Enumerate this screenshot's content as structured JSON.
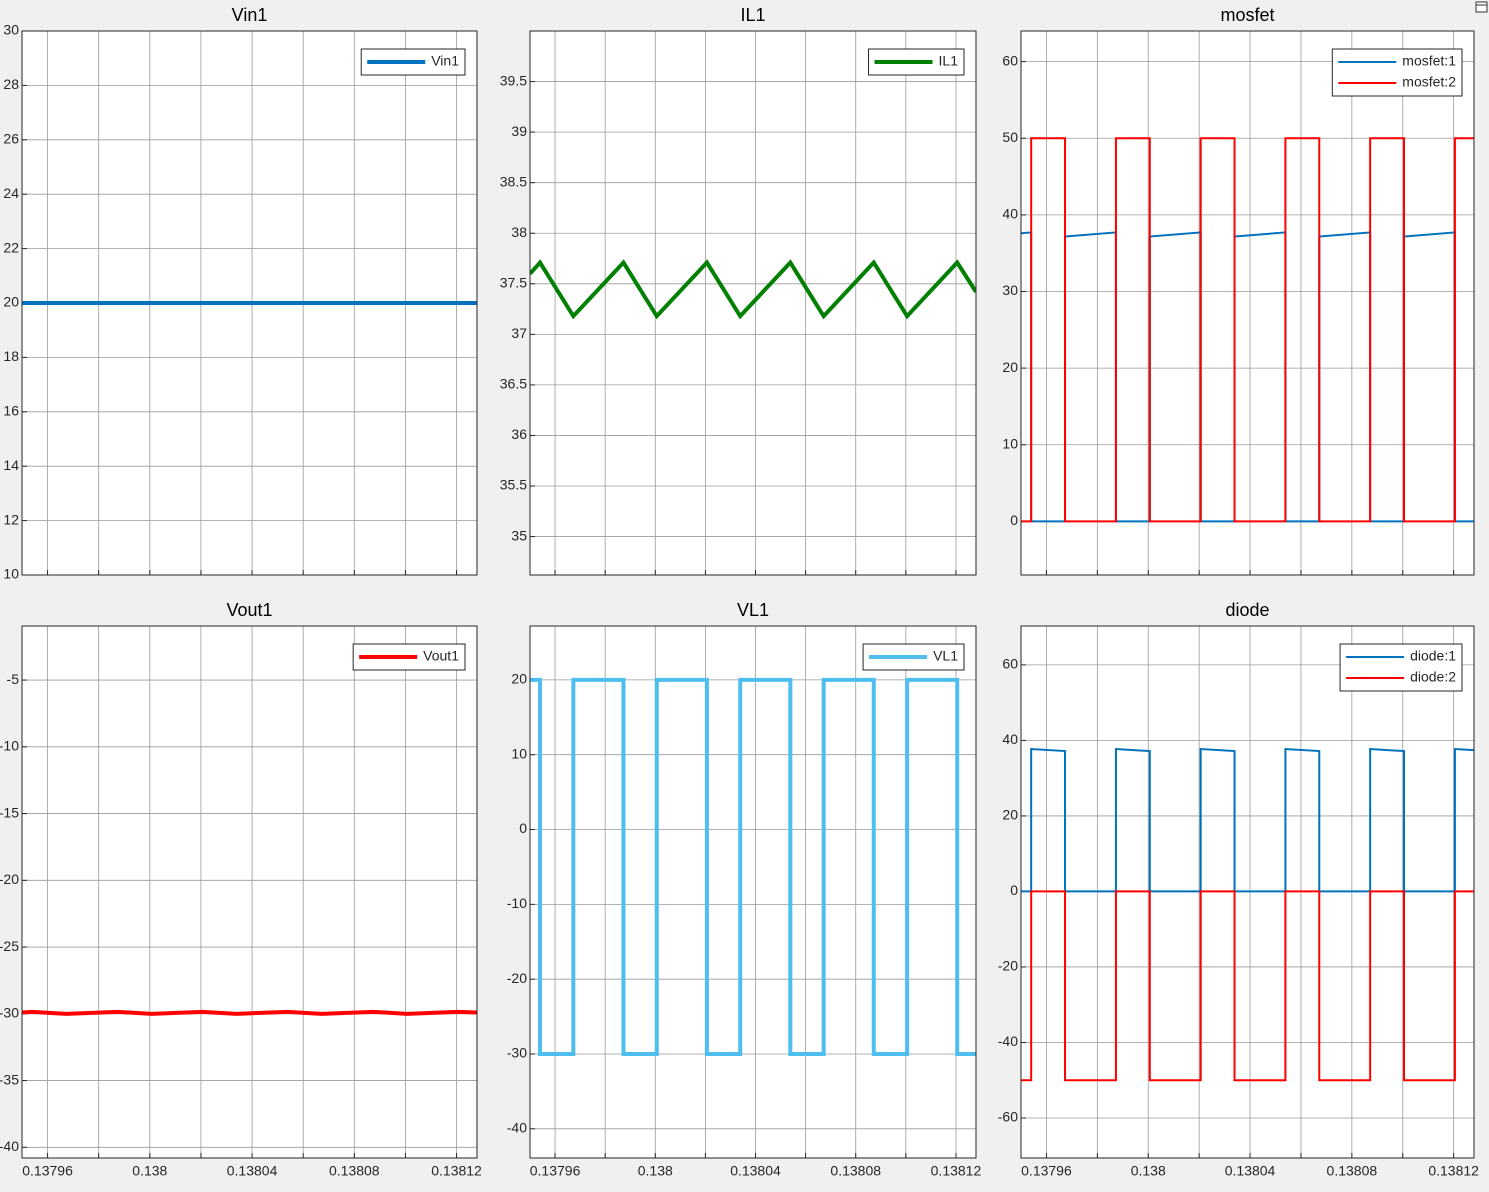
{
  "chart_data": [
    {
      "type": "line",
      "title": "Vin1",
      "xlim": [
        0.13795,
        0.138128
      ],
      "xgrid": [
        0.13796,
        0.13798,
        0.138,
        0.13802,
        0.13804,
        0.13806,
        0.13808,
        0.1381,
        0.13812
      ],
      "ylim": [
        10,
        30
      ],
      "yticks": [
        10,
        12,
        14,
        16,
        18,
        20,
        22,
        24,
        26,
        28,
        30
      ],
      "grid": true,
      "legend": "upper right",
      "line_width": 4,
      "series": [
        {
          "name": "Vin1",
          "color": "#0072bd",
          "x": [
            0.13795,
            0.138128
          ],
          "values": [
            20,
            20
          ]
        }
      ]
    },
    {
      "type": "line",
      "title": "IL1",
      "xlim": [
        0.13795,
        0.138128
      ],
      "xgrid": [
        0.13796,
        0.13798,
        0.138,
        0.13802,
        0.13804,
        0.13806,
        0.13808,
        0.1381,
        0.13812
      ],
      "ylim": [
        34.62,
        40
      ],
      "yticks": [
        35,
        35.5,
        36,
        36.5,
        37,
        37.5,
        38,
        38.5,
        39,
        39.5
      ],
      "grid": true,
      "legend": "upper right",
      "line_width": 4,
      "series": [
        {
          "name": "IL1",
          "color": "#008000",
          "x": [
            0.13795,
            0.137954,
            0.1379673,
            0.1379873,
            0.1380006,
            0.1380206,
            0.1380339,
            0.1380539,
            0.1380672,
            0.1380872,
            0.1381005,
            0.1381205,
            0.138128
          ],
          "values": [
            37.6,
            37.71,
            37.18,
            37.71,
            37.18,
            37.71,
            37.18,
            37.71,
            37.18,
            37.71,
            37.18,
            37.71,
            37.42
          ]
        }
      ]
    },
    {
      "type": "line",
      "title": "mosfet",
      "xlim": [
        0.13795,
        0.138128
      ],
      "xgrid": [
        0.13796,
        0.13798,
        0.138,
        0.13802,
        0.13804,
        0.13806,
        0.13808,
        0.1381,
        0.13812
      ],
      "ylim": [
        -7,
        64
      ],
      "yticks": [
        0,
        10,
        20,
        30,
        40,
        50,
        60
      ],
      "grid": true,
      "legend": "upper right",
      "line_width": 2,
      "series": [
        {
          "name": "mosfet:1",
          "color": "#0072bd",
          "x": [
            0.13795,
            0.137954,
            0.137954,
            0.1379673,
            0.1379673,
            0.1379873,
            0.1379873,
            0.1380006,
            0.1380006,
            0.1380206,
            0.1380206,
            0.1380339,
            0.1380339,
            0.1380539,
            0.1380539,
            0.1380672,
            0.1380672,
            0.1380872,
            0.1380872,
            0.1381005,
            0.1381005,
            0.1381205,
            0.1381205,
            0.138128
          ],
          "values": [
            37.6,
            37.71,
            0,
            0,
            37.18,
            37.71,
            0,
            0,
            37.18,
            37.71,
            0,
            0,
            37.18,
            37.71,
            0,
            0,
            37.18,
            37.71,
            0,
            0,
            37.18,
            37.71,
            0,
            0
          ]
        },
        {
          "name": "mosfet:2",
          "color": "#ff0000",
          "x": [
            0.13795,
            0.137954,
            0.137954,
            0.1379673,
            0.1379673,
            0.1379873,
            0.1379873,
            0.1380006,
            0.1380006,
            0.1380206,
            0.1380206,
            0.1380339,
            0.1380339,
            0.1380539,
            0.1380539,
            0.1380672,
            0.1380672,
            0.1380872,
            0.1380872,
            0.1381005,
            0.1381005,
            0.1381205,
            0.1381205,
            0.138128
          ],
          "values": [
            0,
            0,
            50,
            50,
            0,
            0,
            50,
            50,
            0,
            0,
            50,
            50,
            0,
            0,
            50,
            50,
            0,
            0,
            50,
            50,
            0,
            0,
            50,
            50
          ]
        }
      ]
    },
    {
      "type": "line",
      "title": "Vout1",
      "xlim": [
        0.13795,
        0.138128
      ],
      "xgrid": [
        0.13796,
        0.13798,
        0.138,
        0.13802,
        0.13804,
        0.13806,
        0.13808,
        0.1381,
        0.13812
      ],
      "xticks": [
        0.13796,
        0.138,
        0.13804,
        0.13808,
        0.13812
      ],
      "ylim": [
        -40.8,
        -0.95
      ],
      "yticks": [
        -40,
        -35,
        -30,
        -25,
        -20,
        -15,
        -10,
        -5
      ],
      "grid": true,
      "legend": "upper right",
      "line_width": 4,
      "series": [
        {
          "name": "Vout1",
          "color": "#ff0000",
          "x": [
            0.13795,
            0.137954,
            0.1379673,
            0.1379873,
            0.1380006,
            0.1380206,
            0.1380339,
            0.1380539,
            0.1380672,
            0.1380872,
            0.1381005,
            0.1381205,
            0.138128
          ],
          "values": [
            -29.9,
            -29.85,
            -30,
            -29.85,
            -30,
            -29.85,
            -30,
            -29.85,
            -30,
            -29.85,
            -30,
            -29.85,
            -29.9
          ]
        }
      ]
    },
    {
      "type": "line",
      "title": "VL1",
      "xlim": [
        0.13795,
        0.138128
      ],
      "xgrid": [
        0.13796,
        0.13798,
        0.138,
        0.13802,
        0.13804,
        0.13806,
        0.13808,
        0.1381,
        0.13812
      ],
      "xticks": [
        0.13796,
        0.138,
        0.13804,
        0.13808,
        0.13812
      ],
      "ylim": [
        -43.9,
        27.2
      ],
      "yticks": [
        -40,
        -30,
        -20,
        -10,
        0,
        10,
        20
      ],
      "grid": true,
      "legend": "upper right",
      "line_width": 4,
      "series": [
        {
          "name": "VL1",
          "color": "#4dbeee",
          "x": [
            0.13795,
            0.137954,
            0.137954,
            0.1379673,
            0.1379673,
            0.1379873,
            0.1379873,
            0.1380006,
            0.1380006,
            0.1380206,
            0.1380206,
            0.1380339,
            0.1380339,
            0.1380539,
            0.1380539,
            0.1380672,
            0.1380672,
            0.1380872,
            0.1380872,
            0.1381005,
            0.1381005,
            0.1381205,
            0.1381205,
            0.138128
          ],
          "values": [
            20,
            20,
            -30,
            -30,
            20,
            20,
            -30,
            -30,
            20,
            20,
            -30,
            -30,
            20,
            20,
            -30,
            -30,
            20,
            20,
            -30,
            -30,
            20,
            20,
            -30,
            -30
          ]
        }
      ]
    },
    {
      "type": "line",
      "title": "diode",
      "xlim": [
        0.13795,
        0.138128
      ],
      "xgrid": [
        0.13796,
        0.13798,
        0.138,
        0.13802,
        0.13804,
        0.13806,
        0.13808,
        0.1381,
        0.13812
      ],
      "xticks": [
        0.13796,
        0.138,
        0.13804,
        0.13808,
        0.13812
      ],
      "ylim": [
        -70.6,
        70.3
      ],
      "yticks": [
        -60,
        -40,
        -20,
        0,
        20,
        40,
        60
      ],
      "grid": true,
      "legend": "upper right",
      "line_width": 2,
      "series": [
        {
          "name": "diode:1",
          "color": "#0072bd",
          "x": [
            0.13795,
            0.137954,
            0.137954,
            0.1379673,
            0.1379673,
            0.1379873,
            0.1379873,
            0.1380006,
            0.1380006,
            0.1380206,
            0.1380206,
            0.1380339,
            0.1380339,
            0.1380539,
            0.1380539,
            0.1380672,
            0.1380672,
            0.1380872,
            0.1380872,
            0.1381005,
            0.1381005,
            0.1381205,
            0.1381205,
            0.138128
          ],
          "values": [
            0,
            0,
            37.71,
            37.18,
            0,
            0,
            37.71,
            37.18,
            0,
            0,
            37.71,
            37.18,
            0,
            0,
            37.71,
            37.18,
            0,
            0,
            37.71,
            37.18,
            0,
            0,
            37.71,
            37.42
          ]
        },
        {
          "name": "diode:2",
          "color": "#ff0000",
          "x": [
            0.13795,
            0.137954,
            0.137954,
            0.1379673,
            0.1379673,
            0.1379873,
            0.1379873,
            0.1380006,
            0.1380006,
            0.1380206,
            0.1380206,
            0.1380339,
            0.1380339,
            0.1380539,
            0.1380539,
            0.1380672,
            0.1380672,
            0.1380872,
            0.1380872,
            0.1381005,
            0.1381005,
            0.1381205,
            0.1381205,
            0.138128
          ],
          "values": [
            -50,
            -50,
            0,
            0,
            -50,
            -50,
            0,
            0,
            -50,
            -50,
            0,
            0,
            -50,
            -50,
            0,
            0,
            -50,
            -50,
            0,
            0,
            -50,
            -50,
            0,
            0
          ]
        }
      ]
    }
  ]
}
